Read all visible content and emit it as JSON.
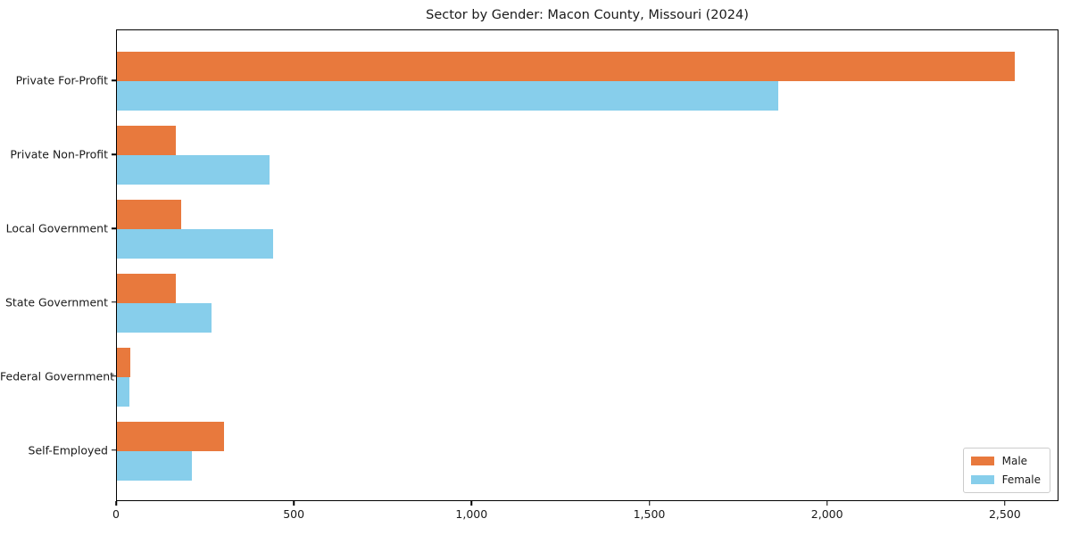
{
  "colors": {
    "male": "#E8793D",
    "female": "#87CEEB",
    "axis": "#000000",
    "text": "#1a1a1a",
    "legend_border": "#cccccc",
    "background": "#ffffff"
  },
  "legend": {
    "position": "lower right",
    "entries": [
      "Male",
      "Female"
    ]
  },
  "chart_data": {
    "type": "bar",
    "orientation": "horizontal",
    "title": "Sector by Gender: Macon County, Missouri (2024)",
    "xlabel": "",
    "ylabel": "",
    "grid": false,
    "categories": [
      "Private For-Profit",
      "Private Non-Profit",
      "Local Government",
      "State Government",
      "Federal Government",
      "Self-Employed"
    ],
    "series": [
      {
        "name": "Male",
        "color": "#E8793D",
        "values": [
          2525,
          165,
          180,
          165,
          38,
          300
        ]
      },
      {
        "name": "Female",
        "color": "#87CEEB",
        "values": [
          1860,
          430,
          440,
          265,
          35,
          210
        ]
      }
    ],
    "xlim": [
      0,
      2651
    ],
    "xticks": [
      0,
      500,
      1000,
      1500,
      2000,
      2500
    ],
    "xtick_labels": [
      "0",
      "500",
      "1,000",
      "1,500",
      "2,000",
      "2,500"
    ],
    "legend_position": "lower right"
  }
}
